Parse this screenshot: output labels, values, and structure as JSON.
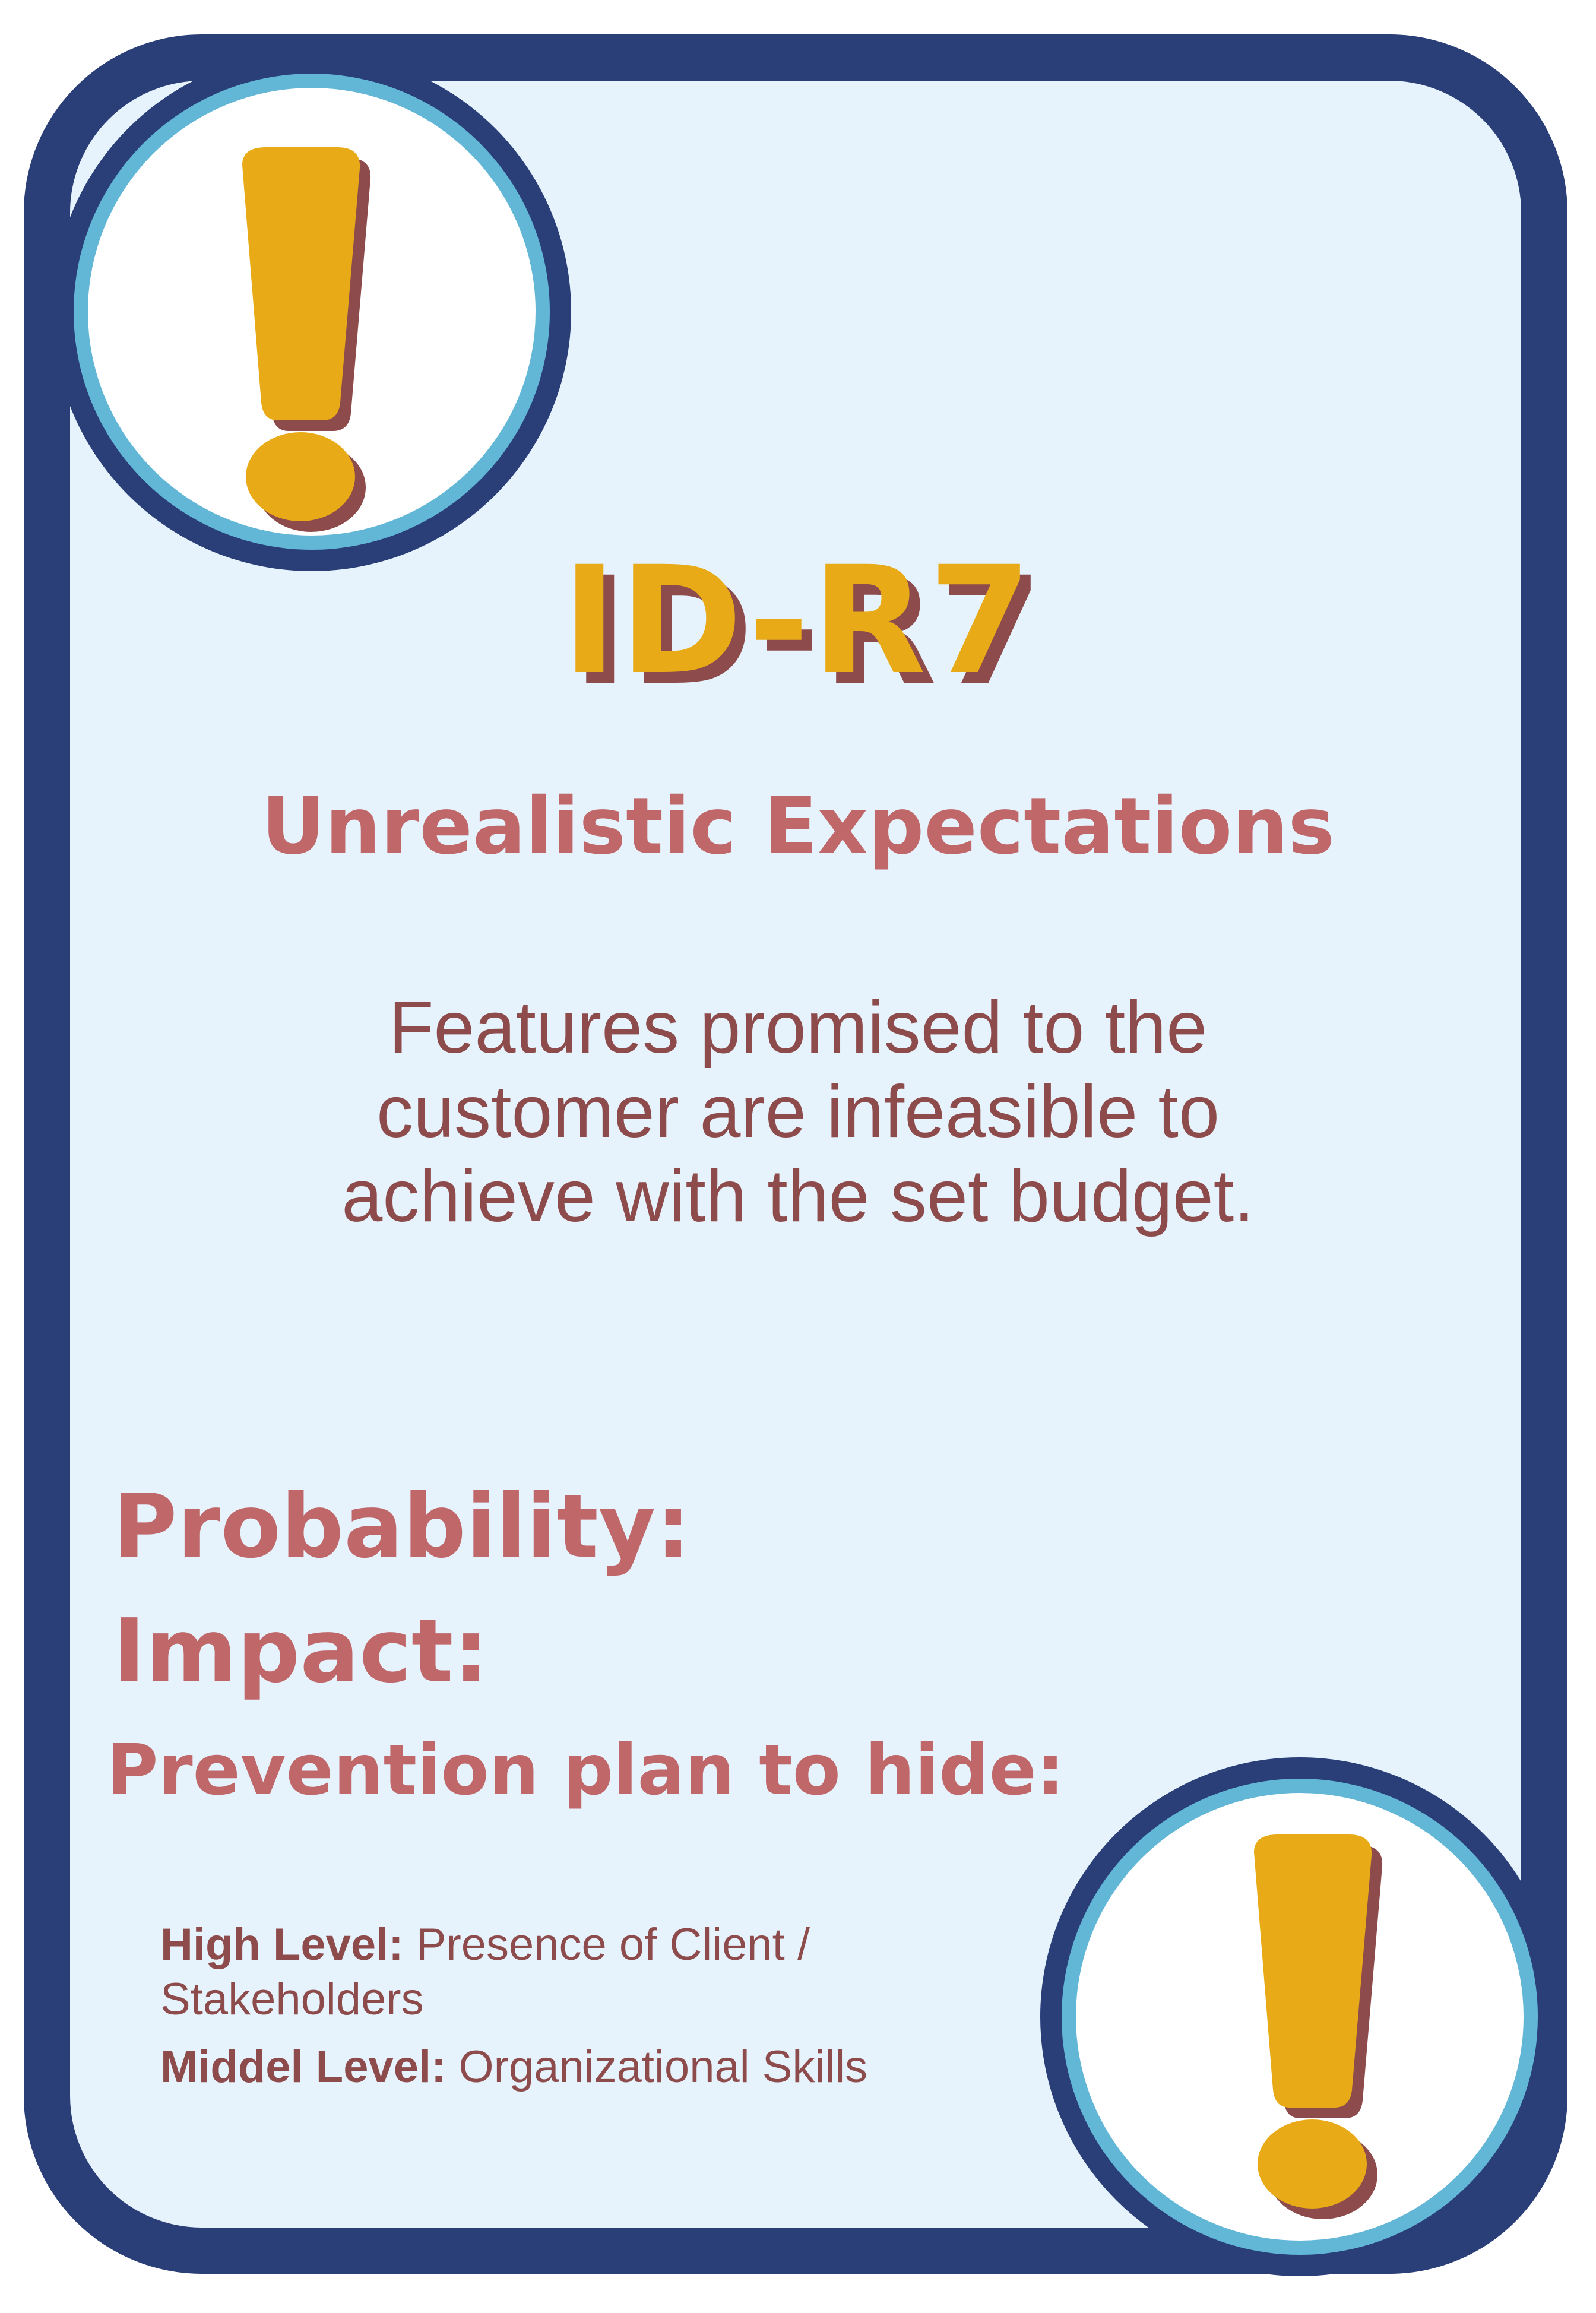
{
  "card": {
    "id": "ID-R7",
    "title": "Unrealistic Expectations",
    "description_lines": [
      "Features promised to the",
      "customer are infeasible to",
      "achieve with the set budget."
    ],
    "fields": {
      "probability_label": "Probability:",
      "impact_label": "Impact:",
      "prevention_label": "Prevention plan to hide:"
    },
    "levels": [
      {
        "label": "High Level:",
        "text": "Presence of Client / Stakeholders"
      },
      {
        "label": "Middel Level:",
        "text": "Organizational Skills"
      }
    ]
  },
  "icons": {
    "top_left": "exclamation-icon",
    "bottom_right": "exclamation-icon"
  },
  "colors": {
    "frame": "#2a3e78",
    "ring": "#62b6d6",
    "background": "#e6f3fc",
    "accent_yellow": "#e8ab17",
    "accent_shadow": "#8d4b4b",
    "heading": "#c0676a",
    "body_text": "#8d4b4b"
  }
}
